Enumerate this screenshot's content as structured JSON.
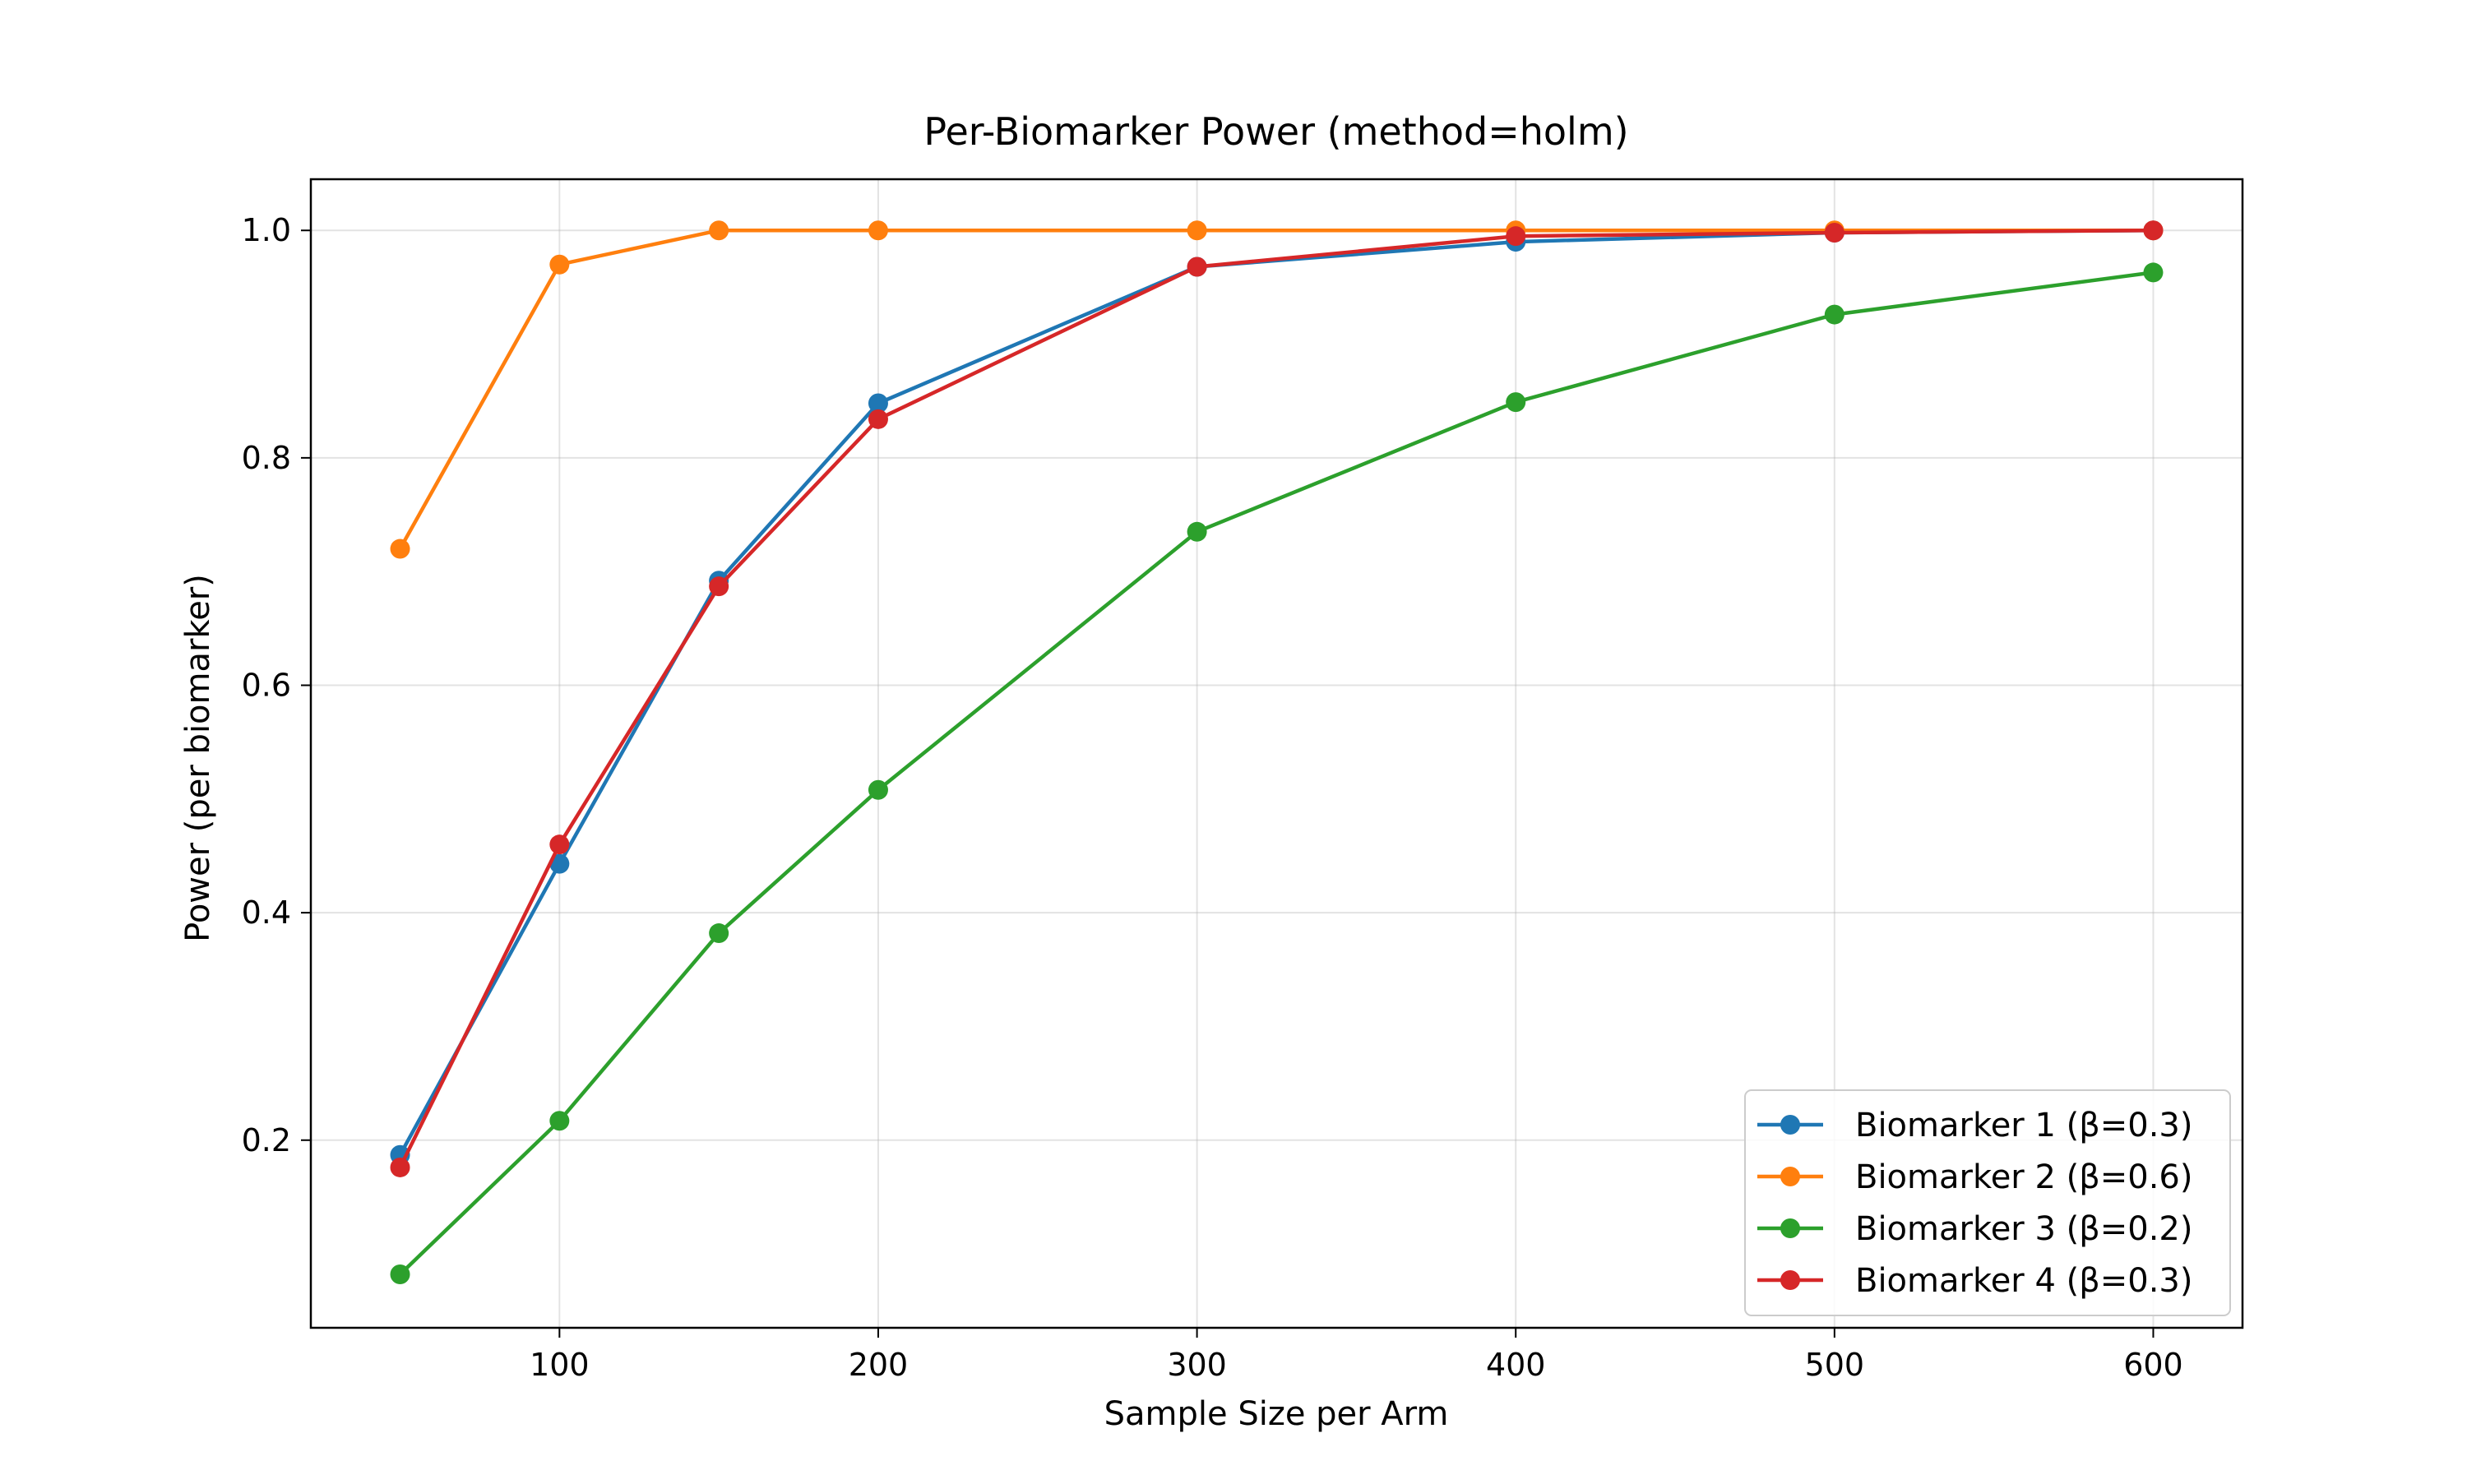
{
  "chart_data": {
    "type": "line",
    "title": "Per-Biomarker Power (method=holm)",
    "xlabel": "Sample Size per Arm",
    "ylabel": "Power (per biomarker)",
    "x": [
      50,
      100,
      150,
      200,
      300,
      400,
      500,
      600
    ],
    "xlim": [
      22,
      628
    ],
    "ylim": [
      0.035,
      1.045
    ],
    "xticks": [
      100,
      200,
      300,
      400,
      500,
      600
    ],
    "yticks": [
      0.2,
      0.4,
      0.6,
      0.8,
      1.0
    ],
    "xtick_labels": [
      "100",
      "200",
      "300",
      "400",
      "500",
      "600"
    ],
    "ytick_labels": [
      "0.2",
      "0.4",
      "0.6",
      "0.8",
      "1.0"
    ],
    "grid": true,
    "legend_position": "lower-right",
    "series": [
      {
        "name": "Biomarker 1 (β=0.3)",
        "color": "#1f77b4",
        "values": [
          0.187,
          0.443,
          0.692,
          0.848,
          0.968,
          0.99,
          0.998,
          1.0
        ]
      },
      {
        "name": "Biomarker 2 (β=0.6)",
        "color": "#ff7f0e",
        "values": [
          0.72,
          0.97,
          1.0,
          1.0,
          1.0,
          1.0,
          1.0,
          1.0
        ]
      },
      {
        "name": "Biomarker 3 (β=0.2)",
        "color": "#2ca02c",
        "values": [
          0.082,
          0.217,
          0.382,
          0.508,
          0.735,
          0.849,
          0.926,
          0.963
        ]
      },
      {
        "name": "Biomarker 4 (β=0.3)",
        "color": "#d62728",
        "values": [
          0.176,
          0.46,
          0.687,
          0.834,
          0.968,
          0.995,
          0.998,
          1.0
        ]
      }
    ]
  }
}
